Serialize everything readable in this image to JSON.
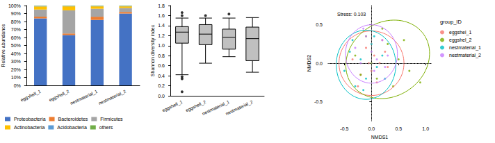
{
  "chart_data": [
    {
      "type": "bar",
      "stacked": true,
      "y_label": "Relative abundance",
      "categories": [
        "eggshell_1",
        "eggshell_2",
        "nestmaterial_1",
        "nestmaterial_2"
      ],
      "series": [
        {
          "name": "Proteobacteria",
          "color": "#4472c4",
          "values": [
            84,
            63,
            82,
            90
          ]
        },
        {
          "name": "Bacteroidetes",
          "color": "#ed7d31",
          "values": [
            2,
            2,
            4,
            2
          ]
        },
        {
          "name": "Firmicutes",
          "color": "#a5a5a5",
          "values": [
            9,
            29,
            10,
            5
          ]
        },
        {
          "name": "Actinobacteria",
          "color": "#ffc000",
          "values": [
            4,
            5,
            3,
            2
          ]
        },
        {
          "name": "Acidobacteria",
          "color": "#5b9bd5",
          "values": [
            0.5,
            0.5,
            0.5,
            0.5
          ]
        },
        {
          "name": "others",
          "color": "#70ad47",
          "values": [
            0.5,
            0.5,
            0.5,
            0.5
          ]
        }
      ],
      "ylim": [
        0,
        100
      ],
      "yticks": [
        {
          "value": 0,
          "label": "0%"
        },
        {
          "value": 10,
          "label": "10%"
        },
        {
          "value": 20,
          "label": "20%"
        },
        {
          "value": 30,
          "label": "30%"
        },
        {
          "value": 40,
          "label": "40%"
        },
        {
          "value": 50,
          "label": "50%"
        },
        {
          "value": 60,
          "label": "60%"
        },
        {
          "value": 70,
          "label": "70%"
        },
        {
          "value": 80,
          "label": "80%"
        },
        {
          "value": 90,
          "label": "90%"
        },
        {
          "value": 100,
          "label": "100%"
        }
      ],
      "grid": false,
      "legend": "bottom"
    },
    {
      "type": "boxplot",
      "y_label": "Shannon diversity index",
      "color": "#c0c0c0",
      "categories": [
        "eggshell_1",
        "eggshell_2",
        "nestmaterial_1",
        "nestmaterial_2"
      ],
      "boxes": [
        {
          "min": 0.42,
          "q1": 1.05,
          "median": 1.27,
          "q3": 1.38,
          "max": 1.55
        },
        {
          "min": 0.65,
          "q1": 1.02,
          "median": 1.23,
          "q3": 1.42,
          "max": 1.55
        },
        {
          "min": 0.78,
          "q1": 0.93,
          "median": 1.17,
          "q3": 1.33,
          "max": 1.55
        },
        {
          "min": 0.47,
          "q1": 0.7,
          "median": 1.14,
          "q3": 1.37,
          "max": 1.56
        }
      ],
      "outliers": [
        [
          1.66,
          1.6,
          0.38,
          0.34,
          0.08
        ],
        [
          1.6
        ],
        [
          1.63
        ],
        []
      ],
      "ylim": [
        0,
        1.8
      ],
      "yticks": [
        {
          "value": 0,
          "label": "0.0"
        },
        0.2,
        0.4,
        0.6,
        0.8,
        {
          "value": 1,
          "label": "1.0"
        },
        1.2,
        1.4,
        1.6,
        1.8
      ],
      "grid": false
    },
    {
      "type": "scatter",
      "annotation": "Stress: 0.103",
      "x_label": "NMDS1",
      "y_label": "NMDS2",
      "legend_title": "group_ID",
      "legend": "right",
      "grid": false,
      "marker": "circle",
      "series": [
        {
          "name": "eggshel_1",
          "color": "#f8766d",
          "x": [
            -0.35,
            -0.2,
            -0.1,
            0.0,
            0.05,
            0.1,
            0.15,
            0.25,
            0.3,
            -0.25,
            0.2,
            -0.05
          ],
          "y": [
            0.05,
            -0.15,
            0.2,
            -0.1,
            0.1,
            -0.25,
            0.0,
            0.15,
            -0.05,
            -0.3,
            0.3,
            0.0
          ],
          "ellipse": {
            "center": [
              0.0,
              0.0
            ],
            "radii": [
              0.6,
              0.42
            ],
            "angle": 0
          }
        },
        {
          "name": "eggshel_2",
          "color": "#7cae00",
          "x": [
            -0.3,
            -0.1,
            0.1,
            0.3,
            0.5,
            0.7,
            0.9,
            0.2,
            0.4,
            0.0,
            0.6,
            -0.2
          ],
          "y": [
            0.1,
            0.35,
            -0.2,
            0.25,
            0.05,
            -0.1,
            -0.25,
            0.45,
            -0.3,
            0.0,
            0.3,
            -0.15
          ],
          "ellipse": {
            "center": [
              0.3,
              0.05
            ],
            "radii": [
              0.78,
              0.5
            ],
            "angle": 10
          }
        },
        {
          "name": "nestmaterial_1",
          "color": "#00bfc4",
          "x": [
            -0.5,
            -0.4,
            -0.3,
            -0.2,
            -0.1,
            0.0,
            0.1,
            0.2,
            -0.35,
            -0.15,
            0.05,
            0.25
          ],
          "y": [
            -0.1,
            0.15,
            -0.3,
            0.05,
            -0.2,
            0.25,
            -0.05,
            0.1,
            0.3,
            -0.35,
            0.35,
            -0.2
          ],
          "ellipse": {
            "center": [
              -0.1,
              -0.02
            ],
            "radii": [
              0.55,
              0.45
            ],
            "angle": 0
          }
        },
        {
          "name": "nestmaterial_2",
          "color": "#c77cff",
          "x": [
            -0.3,
            -0.2,
            -0.1,
            0.0,
            0.1,
            0.2,
            0.3,
            -0.15,
            0.05,
            0.25
          ],
          "y": [
            0.2,
            0.0,
            0.35,
            0.15,
            0.05,
            0.3,
            0.1,
            0.45,
            -0.1,
            -0.05
          ],
          "ellipse": {
            "center": [
              0.0,
              0.12
            ],
            "radii": [
              0.48,
              0.38
            ],
            "angle": 0
          }
        }
      ],
      "reference_lines": [
        {
          "axis": "x",
          "value": 0
        },
        {
          "axis": "y",
          "value": 0
        }
      ],
      "xlim": [
        -0.8,
        1.1
      ],
      "xticks": [
        -0.5,
        {
          "value": 0,
          "label": "0.0"
        },
        0.5,
        {
          "value": 1,
          "label": "1.0"
        }
      ],
      "ylim": [
        -0.75,
        0.75
      ],
      "yticks": [
        -0.5,
        {
          "value": 0,
          "label": "0.0"
        },
        0.5
      ]
    }
  ]
}
